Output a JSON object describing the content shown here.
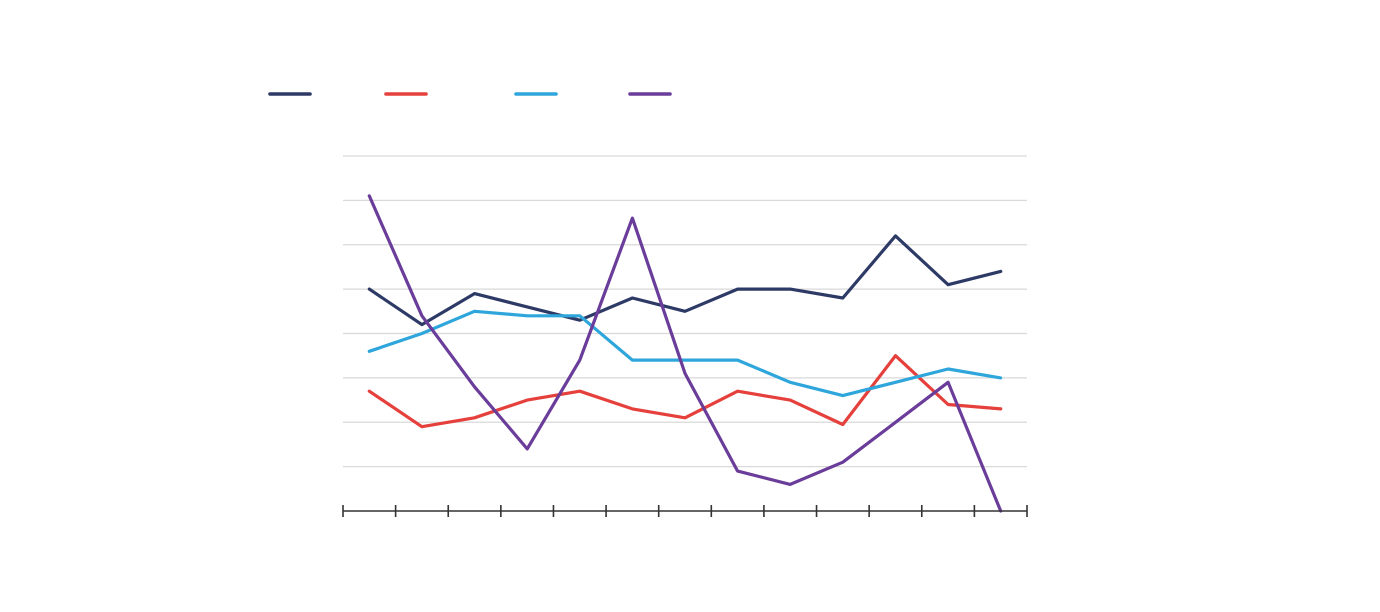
{
  "chart_data": {
    "type": "line",
    "title": "",
    "xlabel": "",
    "ylabel": "",
    "categories": [
      "",
      "",
      "",
      "",
      "",
      "",
      "",
      "",
      "",
      "",
      "",
      "",
      ""
    ],
    "ylim": [
      0,
      8
    ],
    "grid": true,
    "legend": "top-left",
    "series": [
      {
        "color": "#2e3a66",
        "values": [
          5.0,
          4.2,
          4.9,
          4.6,
          4.3,
          4.8,
          4.5,
          5.0,
          5.0,
          4.8,
          6.2,
          5.1,
          5.4
        ]
      },
      {
        "color": "#e5403b",
        "values": [
          2.7,
          1.9,
          2.1,
          2.5,
          2.7,
          2.3,
          2.1,
          2.7,
          2.5,
          1.95,
          3.5,
          2.4,
          2.3
        ]
      },
      {
        "color": "#2ea6dc",
        "values": [
          3.6,
          4.0,
          4.5,
          4.4,
          4.4,
          3.4,
          3.4,
          3.4,
          2.9,
          2.6,
          2.9,
          3.2,
          3.0
        ]
      },
      {
        "color": "#6a3d9a",
        "values": [
          7.1,
          4.4,
          2.8,
          1.4,
          3.4,
          6.6,
          3.1,
          0.9,
          0.6,
          1.1,
          2.0,
          2.9,
          0.0
        ]
      }
    ]
  }
}
